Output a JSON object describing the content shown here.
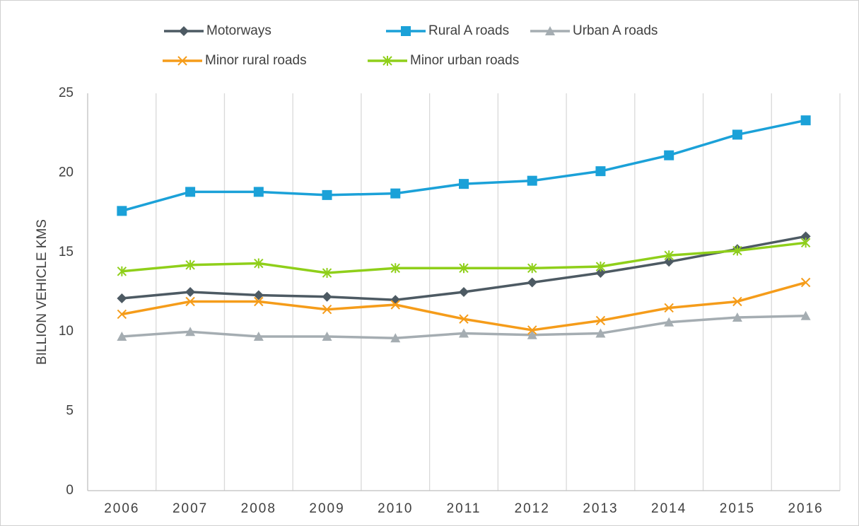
{
  "chart_data": {
    "type": "line",
    "y_label": "BILLION VEHICLE KMS",
    "categories": [
      "2006",
      "2007",
      "2008",
      "2009",
      "2010",
      "2011",
      "2012",
      "2013",
      "2014",
      "2015",
      "2016"
    ],
    "series": [
      {
        "name": "Motorways",
        "color": "#4d5a63",
        "marker": "diamond",
        "values": [
          12.1,
          12.5,
          12.3,
          12.2,
          12.0,
          12.5,
          13.1,
          13.7,
          14.4,
          15.2,
          16.0
        ]
      },
      {
        "name": "Rural A roads",
        "color": "#1ba1d8",
        "marker": "square",
        "values": [
          17.6,
          18.8,
          18.8,
          18.6,
          18.7,
          19.3,
          19.5,
          20.1,
          21.1,
          22.4,
          23.3
        ]
      },
      {
        "name": "Urban A roads",
        "color": "#a5adb2",
        "marker": "triangle",
        "values": [
          9.7,
          10.0,
          9.7,
          9.7,
          9.6,
          9.9,
          9.8,
          9.9,
          10.6,
          10.9,
          11.0
        ]
      },
      {
        "name": "Minor rural roads",
        "color": "#f59c1a",
        "marker": "x",
        "values": [
          11.1,
          11.9,
          11.9,
          11.4,
          11.7,
          10.8,
          10.1,
          10.7,
          11.5,
          11.9,
          13.1
        ]
      },
      {
        "name": "Minor urban roads",
        "color": "#8fcf1a",
        "marker": "star",
        "values": [
          13.8,
          14.2,
          14.3,
          13.7,
          14.0,
          14.0,
          14.0,
          14.1,
          14.8,
          15.1,
          15.6
        ]
      }
    ],
    "ylim": [
      0,
      25
    ],
    "yticks": [
      0,
      5,
      10,
      15,
      20,
      25
    ],
    "grid": "x",
    "legend": "top"
  }
}
